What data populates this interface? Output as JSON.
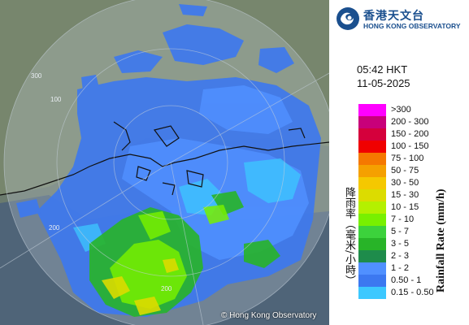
{
  "organization": {
    "name_zh": "香港天文台",
    "name_en": "HONG KONG OBSERVATORY"
  },
  "timestamp": {
    "time": "05:42 HKT",
    "date": "11-05-2025"
  },
  "legend": {
    "title_en": "Rainfall Rate (mm/h)",
    "title_zh": "降雨率（毫米/小時）",
    "items": [
      {
        "label": ">300",
        "color": "#ff00ff"
      },
      {
        "label": "200 - 300",
        "color": "#c8007a"
      },
      {
        "label": "150 - 200",
        "color": "#d5003c"
      },
      {
        "label": "100 - 150",
        "color": "#f00000"
      },
      {
        "label": "75 - 100",
        "color": "#f57800"
      },
      {
        "label": "50 - 75",
        "color": "#f5a000"
      },
      {
        "label": "30 - 50",
        "color": "#f5c800"
      },
      {
        "label": "15 - 30",
        "color": "#dcdc00"
      },
      {
        "label": "10 - 15",
        "color": "#b4f000"
      },
      {
        "label": "7 - 10",
        "color": "#78f000"
      },
      {
        "label": "5 - 7",
        "color": "#3cd23c"
      },
      {
        "label": "3 - 5",
        "color": "#28b428"
      },
      {
        "label": "2 - 3",
        "color": "#1e8c4b"
      },
      {
        "label": "1 - 2",
        "color": "#5090ff"
      },
      {
        "label": "0.50 - 1",
        "color": "#3c78f0"
      },
      {
        "label": "0.15 - 0.50",
        "color": "#3cc8ff"
      }
    ]
  },
  "map": {
    "range_ring_labels": [
      "100",
      "200",
      "200",
      "300"
    ],
    "copyright": "© Hong Kong Observatory",
    "colors": {
      "land": "#6f7f72",
      "sea": "#4f6478",
      "range_disc": "#9aa7b3",
      "coastline": "#111111"
    }
  }
}
